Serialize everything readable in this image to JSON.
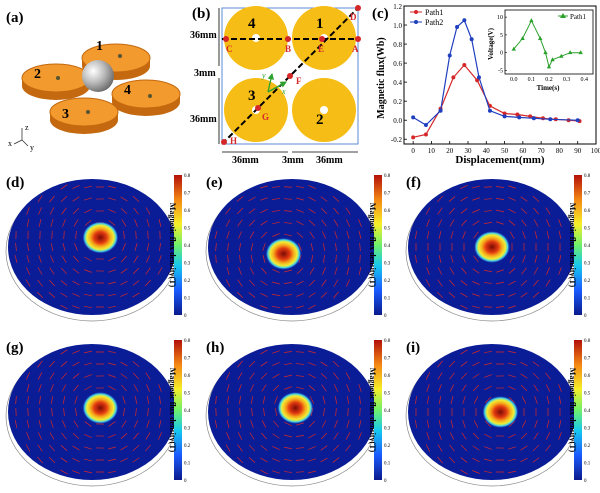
{
  "panel_labels": {
    "a": "(a)",
    "b": "(b)",
    "c": "(c)",
    "d": "(d)",
    "e": "(e)",
    "f": "(f)",
    "g": "(g)",
    "h": "(h)",
    "i": "(i)"
  },
  "panel_a": {
    "disc_labels": [
      "1",
      "2",
      "3",
      "4"
    ],
    "axis_labels": {
      "z": "z",
      "x": "x",
      "y": "y"
    },
    "colors": {
      "disc": "#f29a2e",
      "disc_edge": "#c4690f",
      "sphere": "#b9b9b9"
    }
  },
  "panel_b": {
    "disc_labels": [
      "4",
      "1",
      "3",
      "2"
    ],
    "point_labels": [
      "A",
      "B",
      "C",
      "D",
      "E",
      "F",
      "G",
      "H"
    ],
    "dim_labels": {
      "left_top": "36mm",
      "gap": "3mm",
      "left_bottom": "36mm",
      "bottom_left": "36mm",
      "bottom_gap": "3mm",
      "bottom_right": "36mm"
    },
    "axis_labels": {
      "x": "x",
      "y": "y"
    },
    "colors": {
      "disc": "#f6bd16",
      "point": "#d62728",
      "path": "#000000",
      "axis": "#2ca02c"
    }
  },
  "panel_c": {
    "ylabel": "Magnetic flux(Wb)",
    "xlabel": "Displacement(mm)",
    "x_ticks": [
      "0",
      "10",
      "20",
      "30",
      "40",
      "50",
      "60",
      "70",
      "80",
      "90",
      "100"
    ],
    "y_ticks": [
      "-0.2",
      "0.0",
      "0.2",
      "0.4",
      "0.6",
      "0.8",
      "1.0",
      "1.2"
    ],
    "legend": [
      "Path1",
      "Path2"
    ],
    "inset": {
      "ylabel": "Voltage(V)",
      "xlabel": "Time(s)",
      "legend": "Path1",
      "x_ticks": [
        "0.0",
        "0.1",
        "0.2",
        "0.3",
        "0.4"
      ],
      "y_ticks": [
        "-5",
        "0",
        "5",
        "10"
      ]
    }
  },
  "chart_data": [
    {
      "type": "line",
      "title": "",
      "xlabel": "Displacement(mm)",
      "ylabel": "Magnetic flux(Wb)",
      "xlim": [
        -5,
        100
      ],
      "ylim": [
        -0.25,
        1.2
      ],
      "series": [
        {
          "name": "Path1",
          "color": "#d62728",
          "x": [
            0,
            7,
            15,
            22,
            28,
            35,
            42,
            50,
            57,
            64,
            71,
            78,
            85,
            91
          ],
          "y": [
            -0.18,
            -0.15,
            0.12,
            0.45,
            0.58,
            0.42,
            0.15,
            0.07,
            0.06,
            0.04,
            0.02,
            0.01,
            0.0,
            -0.01
          ]
        },
        {
          "name": "Path2",
          "color": "#1f3fbf",
          "x": [
            0,
            7,
            15,
            20,
            24,
            28,
            32,
            36,
            42,
            50,
            58,
            66,
            75,
            90
          ],
          "y": [
            0.03,
            -0.05,
            0.1,
            0.68,
            0.98,
            1.05,
            0.85,
            0.45,
            0.1,
            0.04,
            0.03,
            0.02,
            0.01,
            0.0
          ]
        }
      ]
    },
    {
      "type": "line",
      "title": "",
      "xlabel": "Time(s)",
      "ylabel": "Voltage(V)",
      "xlim": [
        -0.05,
        0.45
      ],
      "ylim": [
        -6,
        12
      ],
      "series": [
        {
          "name": "Path1",
          "color": "#2ca02c",
          "x": [
            0.0,
            0.05,
            0.1,
            0.15,
            0.18,
            0.2,
            0.22,
            0.27,
            0.32,
            0.38
          ],
          "y": [
            1,
            4,
            9,
            4,
            0,
            -4,
            -2,
            -1,
            0,
            0
          ]
        }
      ]
    }
  ],
  "colorbar": {
    "label": "Magnetic flux density(T)",
    "ticks": [
      "0",
      "0.1",
      "0.2",
      "0.3",
      "0.4",
      "0.5",
      "0.6",
      "0.7",
      "0.8"
    ]
  },
  "maps": [
    {
      "key": "d",
      "hot": [
        0.55,
        0.43
      ]
    },
    {
      "key": "e",
      "hot": [
        0.45,
        0.55
      ]
    },
    {
      "key": "f",
      "hot": [
        0.5,
        0.5
      ]
    },
    {
      "key": "g",
      "hot": [
        0.55,
        0.47
      ]
    },
    {
      "key": "h",
      "hot": [
        0.52,
        0.47
      ]
    },
    {
      "key": "i",
      "hot": [
        0.55,
        0.5
      ]
    }
  ]
}
